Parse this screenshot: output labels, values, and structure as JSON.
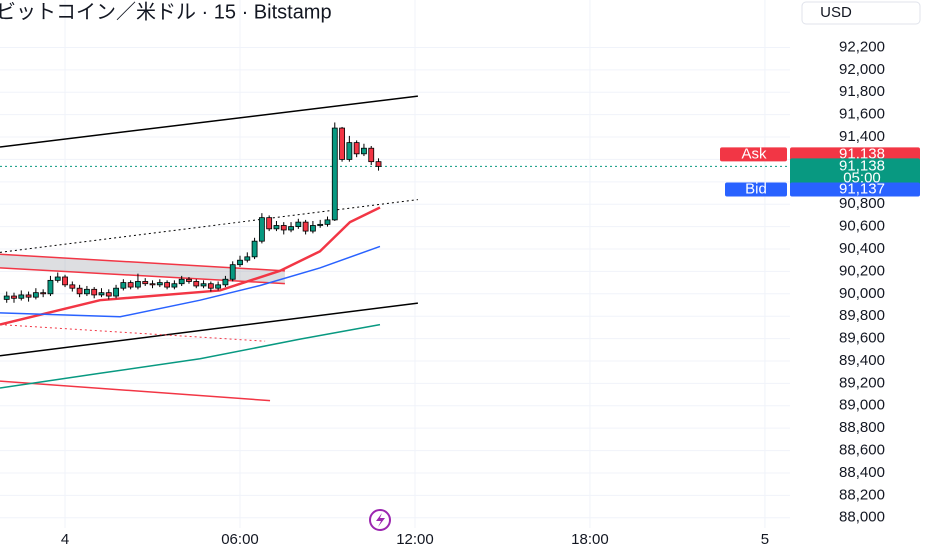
{
  "chart_data": {
    "type": "candlestick",
    "title": "ビットコイン／米ドル · 15 · Bitstamp",
    "currency": "USD",
    "up_color": "#089981",
    "down_color": "#f23645",
    "xlim": [
      -2.23,
      24.86
    ],
    "xticks": [
      {
        "value": 0,
        "label": "4"
      },
      {
        "value": 6,
        "label": "06:00"
      },
      {
        "value": 12,
        "label": "12:00"
      },
      {
        "value": 18,
        "label": "18:00"
      },
      {
        "value": 24,
        "label": "5"
      }
    ],
    "ylim": [
      87980,
      92320
    ],
    "yticks": [
      {
        "value": 88000,
        "label": "88,000"
      },
      {
        "value": 88200,
        "label": "88,200"
      },
      {
        "value": 88400,
        "label": "88,400"
      },
      {
        "value": 88600,
        "label": "88,600"
      },
      {
        "value": 88800,
        "label": "88,800"
      },
      {
        "value": 89000,
        "label": "89,000"
      },
      {
        "value": 89200,
        "label": "89,200"
      },
      {
        "value": 89400,
        "label": "89,400"
      },
      {
        "value": 89600,
        "label": "89,600"
      },
      {
        "value": 89800,
        "label": "89,800"
      },
      {
        "value": 90000,
        "label": "90,000"
      },
      {
        "value": 90200,
        "label": "90,200"
      },
      {
        "value": 90400,
        "label": "90,400"
      },
      {
        "value": 90600,
        "label": "90,600"
      },
      {
        "value": 90800,
        "label": "90,800"
      },
      {
        "value": 91000,
        "label": "91,000"
      },
      {
        "value": 91200,
        "label": "91,200"
      },
      {
        "value": 91400,
        "label": "91,400"
      },
      {
        "value": 91600,
        "label": "91,600"
      },
      {
        "value": 91800,
        "label": "91,800"
      },
      {
        "value": 92000,
        "label": "92,000"
      },
      {
        "value": 92200,
        "label": "92,200"
      }
    ],
    "grid": true,
    "x": [
      -2,
      -1.75,
      -1.5,
      -1.25,
      -1,
      -0.75,
      -0.5,
      -0.25,
      0,
      0.25,
      0.5,
      0.75,
      1,
      1.25,
      1.5,
      1.75,
      2,
      2.25,
      2.5,
      2.75,
      3,
      3.25,
      3.5,
      3.75,
      4,
      4.25,
      4.5,
      4.75,
      5,
      5.25,
      5.5,
      5.75,
      6,
      6.25,
      6.5,
      6.75,
      7,
      7.25,
      7.5,
      7.75,
      8,
      8.25,
      8.5,
      8.75,
      9,
      9.25,
      9.5,
      9.75,
      10,
      10.25,
      10.5,
      10.75
    ],
    "open": [
      89950,
      89980,
      89960,
      89990,
      89970,
      90010,
      90000,
      90120,
      90150,
      90080,
      90050,
      90000,
      90040,
      89990,
      90010,
      89980,
      90050,
      90100,
      90060,
      90110,
      90090,
      90080,
      90100,
      90060,
      90090,
      90130,
      90110,
      90070,
      90090,
      90050,
      90080,
      90130,
      90260,
      90300,
      90330,
      90470,
      90680,
      90580,
      90610,
      90570,
      90600,
      90640,
      90560,
      90610,
      90620,
      90660,
      91480,
      91200,
      91350,
      91250,
      91300,
      91180
    ],
    "high": [
      90020,
      90010,
      90030,
      90020,
      90050,
      90040,
      90160,
      90190,
      90170,
      90110,
      90080,
      90070,
      90060,
      90050,
      90040,
      90080,
      90130,
      90120,
      90180,
      90140,
      90120,
      90130,
      90120,
      90120,
      90160,
      90150,
      90130,
      90120,
      90110,
      90110,
      90160,
      90290,
      90340,
      90370,
      90500,
      90720,
      90700,
      90650,
      90640,
      90640,
      90670,
      90660,
      90650,
      90660,
      90690,
      91530,
      91490,
      91410,
      91370,
      91340,
      91320,
      91210
    ],
    "low": [
      89920,
      89920,
      89940,
      89930,
      89950,
      89970,
      89980,
      90100,
      90060,
      90020,
      89970,
      89980,
      89960,
      89970,
      89950,
      89960,
      90030,
      90040,
      90040,
      90070,
      90050,
      90060,
      90040,
      90040,
      90070,
      90090,
      90050,
      90050,
      90020,
      90030,
      90060,
      90110,
      90240,
      90280,
      90310,
      90450,
      90560,
      90560,
      90530,
      90550,
      90580,
      90530,
      90540,
      90590,
      90600,
      90650,
      91180,
      91180,
      91220,
      91230,
      91150,
      91100
    ],
    "close": [
      89980,
      89960,
      89990,
      89970,
      90010,
      90000,
      90120,
      90150,
      90080,
      90050,
      90000,
      90040,
      89990,
      90010,
      89980,
      90050,
      90100,
      90060,
      90110,
      90090,
      90080,
      90100,
      90060,
      90090,
      90130,
      90110,
      90070,
      90090,
      90050,
      90080,
      90130,
      90260,
      90300,
      90330,
      90470,
      90680,
      90580,
      90610,
      90570,
      90600,
      90640,
      90560,
      90610,
      90620,
      90660,
      91480,
      91200,
      91350,
      91250,
      91300,
      91180,
      91138
    ],
    "overlays": [
      {
        "color": "#000000",
        "style": "solid",
        "x": [
          -2.23,
          12.1
        ],
        "y": [
          91311,
          91765
        ]
      },
      {
        "color": "#000000",
        "style": "solid",
        "x": [
          -2.23,
          12.1
        ],
        "y": [
          89447,
          89917
        ]
      },
      {
        "color": "#000000",
        "style": "dotted",
        "x": [
          -2.23,
          12.1
        ],
        "y": [
          90370,
          90841
        ]
      },
      {
        "color": "#f23645",
        "style": "solid",
        "x": [
          -2.23,
          7.03
        ],
        "y": [
          89220,
          89046
        ]
      },
      {
        "color": "#f23645",
        "style": "dotted",
        "x": [
          -2.23,
          6.86
        ],
        "y": [
          89725,
          89577
        ]
      },
      {
        "color": "#f23645",
        "style": "thick",
        "x": [
          -2.23,
          1.2,
          5.31,
          7.37,
          8.74,
          9.77,
          10.8
        ],
        "y": [
          89725,
          89943,
          90030,
          90205,
          90379,
          90640,
          90771
        ]
      },
      {
        "color": "#2962ff",
        "style": "solid",
        "x": [
          -2.23,
          1.89,
          4.63,
          6.69,
          8.74,
          10.8
        ],
        "y": [
          89830,
          89795,
          89943,
          90074,
          90231,
          90423
        ]
      },
      {
        "color": "#089981",
        "style": "solid",
        "x": [
          -2.23,
          1.2,
          4.63,
          8.06,
          10.8
        ],
        "y": [
          89159,
          89290,
          89420,
          89595,
          89725
        ]
      }
    ],
    "zone": {
      "color": "#f23645",
      "x": [
        -2.23,
        7.54
      ],
      "top": [
        90353,
        90205
      ],
      "bottom": [
        90231,
        90091
      ]
    },
    "ask": {
      "label": "Ask",
      "value": 91138,
      "value_label": "91,138",
      "color": "#f23645"
    },
    "last": {
      "value": 91138,
      "value_label": "91,138",
      "countdown": "05:00",
      "color": "#089981"
    },
    "bid": {
      "label": "Bid",
      "value": 91137,
      "value_label": "91,137",
      "color": "#2962ff"
    }
  }
}
